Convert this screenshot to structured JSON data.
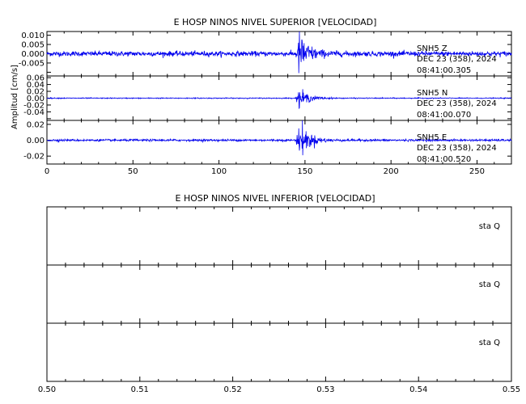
{
  "chart_data": [
    {
      "type": "line",
      "title": "E HOSP NINOS NIVEL SUPERIOR [VELOCIDAD]",
      "ylabel": "Amplitud [cm/s]",
      "xlim": [
        0,
        270
      ],
      "x_ticks": [
        0,
        50,
        100,
        150,
        200,
        250
      ],
      "x_tick_labels": [
        "0",
        "50",
        "100",
        "150",
        "200",
        "250"
      ],
      "grid": false,
      "line_color": "#0000ee",
      "event_x": 146,
      "panels": [
        {
          "component": "Z",
          "ylim": [
            -0.012,
            0.012
          ],
          "y_ticks": [
            -0.01,
            -0.005,
            0.0,
            0.005,
            0.01
          ],
          "y_tick_labels": [
            "",
            "-0.005",
            "0.000",
            "0.005",
            "0.010"
          ],
          "noise_amplitude": 0.0012,
          "peak_amplitude": 0.011,
          "station": "SNH5",
          "channel": "Z",
          "date": "DEC 23 (358), 2024",
          "time": "08:41:00.305"
        },
        {
          "component": "N",
          "ylim": [
            -0.065,
            0.065
          ],
          "y_ticks": [
            -0.06,
            -0.04,
            -0.02,
            0.0,
            0.02,
            0.04,
            0.06
          ],
          "y_tick_labels": [
            "",
            "-0.04",
            "-0.02",
            "0.00",
            "0.02",
            "0.04",
            "0.06"
          ],
          "noise_amplitude": 0.0012,
          "peak_amplitude": 0.028,
          "station": "SNH5",
          "channel": "N",
          "date": "DEC 23 (358), 2024",
          "time": "08:41:00.070"
        },
        {
          "component": "E",
          "ylim": [
            -0.03,
            0.025
          ],
          "y_ticks": [
            -0.02,
            0.0,
            0.02
          ],
          "y_tick_labels": [
            "-0.02",
            "0.00",
            "0.02"
          ],
          "noise_amplitude": 0.0012,
          "peak_amplitude": 0.024,
          "station": "SNH5",
          "channel": "E",
          "date": "DEC 23 (358), 2024",
          "time": "08:41:00.520"
        }
      ]
    },
    {
      "type": "line",
      "title": "E HOSP NINOS NIVEL INFERIOR [VELOCIDAD]",
      "xlim": [
        0.5,
        0.55
      ],
      "x_ticks": [
        0.5,
        0.51,
        0.52,
        0.53,
        0.54,
        0.55
      ],
      "x_tick_labels": [
        "0.50",
        "0.51",
        "0.52",
        "0.53",
        "0.54",
        "0.55"
      ],
      "grid": false,
      "panels": [
        {
          "station": "sta",
          "channel": "Q"
        },
        {
          "station": "sta",
          "channel": "Q"
        },
        {
          "station": "sta",
          "channel": "Q"
        }
      ]
    }
  ]
}
